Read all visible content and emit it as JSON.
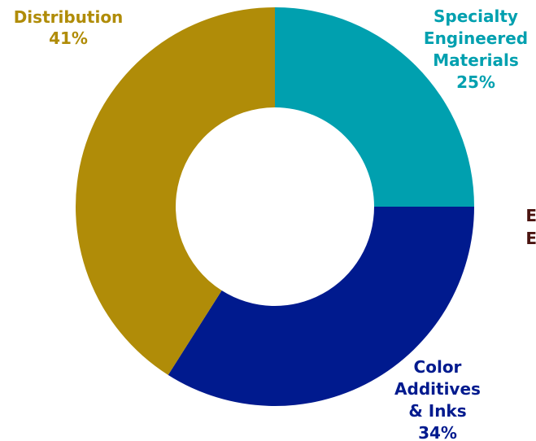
{
  "chart_data": {
    "type": "pie",
    "variant": "donut",
    "slices": [
      {
        "label": [
          "Specialty",
          "Engineered",
          "Materials"
        ],
        "pct_label": "25%",
        "value": 25,
        "color": "#00A0AF"
      },
      {
        "label": [
          "Color",
          "Additives",
          "& Inks"
        ],
        "pct_label": "34%",
        "value": 34,
        "color": "#001A8E"
      },
      {
        "label": [
          "Distribution"
        ],
        "pct_label": "41%",
        "value": 41,
        "color": "#B08C08"
      }
    ],
    "edge_text": [
      "E",
      "E"
    ],
    "edge_text_color": "#4A1410"
  }
}
